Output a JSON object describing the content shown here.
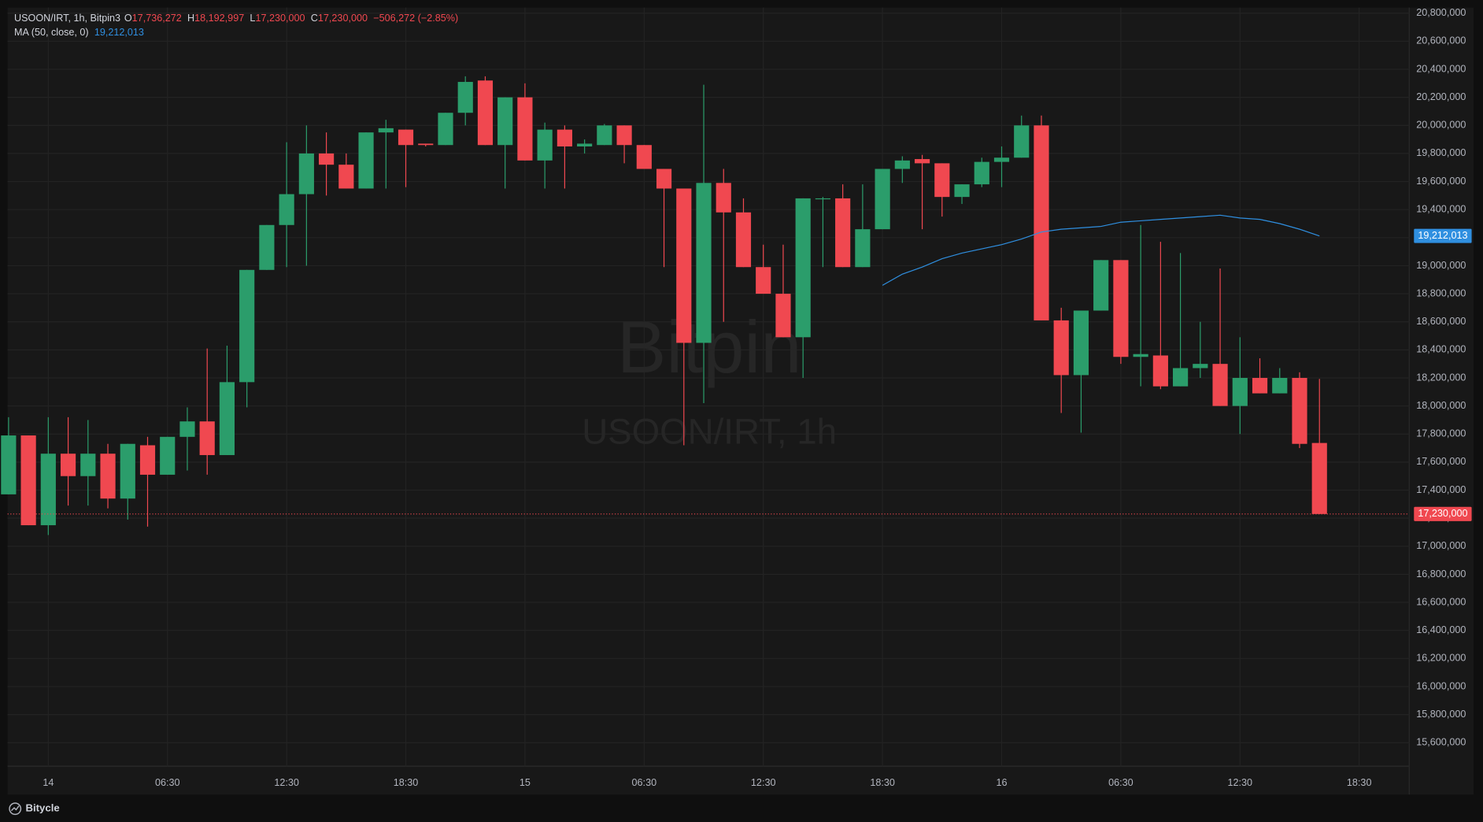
{
  "chart_data": {
    "type": "candlestick",
    "symbol": "USOON/IRT, 1h, Bitpin3",
    "legend_ohlc": [
      {
        "key": "O",
        "text": "17,736,272"
      },
      {
        "key": "H",
        "text": "18,192,997"
      },
      {
        "key": "L",
        "text": "17,230,000"
      },
      {
        "key": "C",
        "text": "17,230,000"
      }
    ],
    "change": "−506,272 (−2.85%)",
    "watermark": "Bitpin",
    "watermark_subtitle": "USOON/IRT, 1h",
    "brand": "Bitycle",
    "up_color": "#2b9d6b",
    "down_color": "#f04850",
    "open": [
      17370000,
      17790000,
      17150000,
      17660000,
      17500000,
      17660000,
      17340000,
      17720000,
      17510000,
      17780000,
      17890000,
      17650000,
      18170000,
      18970000,
      19290000,
      19510000,
      19800000,
      19720000,
      19550000,
      19950000,
      19970000,
      19870000,
      19860000,
      20090000,
      20320000,
      19860000,
      20200000,
      19750000,
      19970000,
      19850000,
      19860000,
      20000000,
      19860000,
      19690000,
      19550000,
      18450000,
      19590000,
      19380000,
      18990000,
      18800000,
      18490000,
      19480000,
      19480000,
      18990000,
      19260000,
      19690000,
      19760000,
      19730000,
      19490000,
      19580000,
      19740000,
      19770000,
      20000000,
      18610000,
      18220000,
      18680000,
      19040000,
      18350000,
      18360000,
      18140000,
      18270000,
      18300000,
      18000000,
      18200000,
      18090000,
      18200000,
      17736272
    ],
    "high": [
      17920000,
      17790000,
      17920000,
      17920000,
      17900000,
      17730000,
      17730000,
      17780000,
      17780000,
      17990000,
      18410000,
      18430000,
      18970000,
      19290000,
      19880000,
      20000000,
      19950000,
      19800000,
      19950000,
      20040000,
      19970000,
      19870000,
      20090000,
      20350000,
      20350000,
      20200000,
      20300000,
      20020000,
      20000000,
      19900000,
      20010000,
      20000000,
      19860000,
      19690000,
      19550000,
      20290000,
      19690000,
      19480000,
      19150000,
      19150000,
      19480000,
      19490000,
      19580000,
      19580000,
      19690000,
      19780000,
      19790000,
      19730000,
      19580000,
      19770000,
      19850000,
      20070000,
      20070000,
      18700000,
      18680000,
      19040000,
      19040000,
      19290000,
      19170000,
      19090000,
      18600000,
      18980000,
      18490000,
      18340000,
      18270000,
      18240000,
      18192997
    ],
    "low": [
      17370000,
      17150000,
      17080000,
      17290000,
      17290000,
      17270000,
      17190000,
      17140000,
      17510000,
      17540000,
      17510000,
      17650000,
      17990000,
      18970000,
      18990000,
      19000000,
      19500000,
      19550000,
      19550000,
      19550000,
      19560000,
      19850000,
      19860000,
      20000000,
      19860000,
      19550000,
      19750000,
      19550000,
      19550000,
      19800000,
      19860000,
      19730000,
      19690000,
      18990000,
      17720000,
      18020000,
      18600000,
      18990000,
      18800000,
      18490000,
      18200000,
      18990000,
      18990000,
      18990000,
      19260000,
      19590000,
      19260000,
      19350000,
      19440000,
      19560000,
      19560000,
      19770000,
      18610000,
      17950000,
      17810000,
      18680000,
      18300000,
      18140000,
      18120000,
      18140000,
      18200000,
      18000000,
      17800000,
      18090000,
      18090000,
      17700000,
      17230000
    ],
    "close": [
      17790000,
      17150000,
      17660000,
      17500000,
      17660000,
      17340000,
      17730000,
      17510000,
      17780000,
      17890000,
      17650000,
      18170000,
      18970000,
      19290000,
      19510000,
      19800000,
      19720000,
      19550000,
      19950000,
      19980000,
      19860000,
      19860000,
      20090000,
      20310000,
      19860000,
      20200000,
      19750000,
      19970000,
      19850000,
      19870000,
      20000000,
      19860000,
      19690000,
      19550000,
      18450000,
      19590000,
      19380000,
      18990000,
      18800000,
      18490000,
      19480000,
      19480000,
      18990000,
      19260000,
      19690000,
      19750000,
      19730000,
      19490000,
      19580000,
      19740000,
      19770000,
      20000000,
      18610000,
      18220000,
      18680000,
      19040000,
      18350000,
      18370000,
      18140000,
      18270000,
      18300000,
      18000000,
      18200000,
      18090000,
      18200000,
      17730000,
      17230000
    ],
    "last_price": {
      "value": 17230000,
      "label": "17,230,000"
    },
    "series": [
      {
        "name": "MA (50, close, 0)",
        "color": "#2f8fe0",
        "last": {
          "value": 19212013,
          "label": "19,212,013"
        },
        "values": [
          null,
          null,
          null,
          null,
          null,
          null,
          null,
          null,
          null,
          null,
          null,
          null,
          null,
          null,
          null,
          null,
          null,
          null,
          null,
          null,
          null,
          null,
          null,
          null,
          null,
          null,
          null,
          null,
          null,
          null,
          null,
          null,
          null,
          null,
          null,
          null,
          null,
          null,
          null,
          null,
          null,
          null,
          null,
          null,
          18860000,
          18940000,
          18990000,
          19050000,
          19090000,
          19120000,
          19150000,
          19190000,
          19240000,
          19260000,
          19270000,
          19280000,
          19310000,
          19320000,
          19330000,
          19340000,
          19350000,
          19360000,
          19340000,
          19330000,
          19300000,
          19260000,
          19212013
        ]
      }
    ],
    "xlim": [
      -0.05,
      70.52
    ],
    "xticks": [
      {
        "value": 2,
        "label": "14"
      },
      {
        "value": 8,
        "label": "06:30"
      },
      {
        "value": 14,
        "label": "12:30"
      },
      {
        "value": 20,
        "label": "18:30"
      },
      {
        "value": 26,
        "label": "15"
      },
      {
        "value": 32,
        "label": "06:30"
      },
      {
        "value": 38,
        "label": "12:30"
      },
      {
        "value": 44,
        "label": "18:30"
      },
      {
        "value": 50,
        "label": "16"
      },
      {
        "value": 56,
        "label": "06:30"
      },
      {
        "value": 62,
        "label": "12:30"
      },
      {
        "value": 68,
        "label": "18:30"
      }
    ],
    "ylim": [
      15230000,
      20840000
    ],
    "yticks": [
      {
        "value": 15600000,
        "label": "15,600,000"
      },
      {
        "value": 15800000,
        "label": "15,800,000"
      },
      {
        "value": 16000000,
        "label": "16,000,000"
      },
      {
        "value": 16200000,
        "label": "16,200,000"
      },
      {
        "value": 16400000,
        "label": "16,400,000"
      },
      {
        "value": 16600000,
        "label": "16,600,000"
      },
      {
        "value": 16800000,
        "label": "16,800,000"
      },
      {
        "value": 17000000,
        "label": "17,000,000"
      },
      {
        "value": 17200000,
        "label": "17,200,000"
      },
      {
        "value": 17400000,
        "label": "17,400,000"
      },
      {
        "value": 17600000,
        "label": "17,600,000"
      },
      {
        "value": 17800000,
        "label": "17,800,000"
      },
      {
        "value": 18000000,
        "label": "18,000,000"
      },
      {
        "value": 18200000,
        "label": "18,200,000"
      },
      {
        "value": 18400000,
        "label": "18,400,000"
      },
      {
        "value": 18600000,
        "label": "18,600,000"
      },
      {
        "value": 18800000,
        "label": "18,800,000"
      },
      {
        "value": 19000000,
        "label": "19,000,000"
      },
      {
        "value": 19200000,
        "label": "19,200,000"
      },
      {
        "value": 19400000,
        "label": "19,400,000"
      },
      {
        "value": 19600000,
        "label": "19,600,000"
      },
      {
        "value": 19800000,
        "label": "19,800,000"
      },
      {
        "value": 20000000,
        "label": "20,000,000"
      },
      {
        "value": 20200000,
        "label": "20,200,000"
      },
      {
        "value": 20400000,
        "label": "20,400,000"
      },
      {
        "value": 20600000,
        "label": "20,600,000"
      },
      {
        "value": 20800000,
        "label": "20,800,000"
      }
    ],
    "grid": true
  }
}
